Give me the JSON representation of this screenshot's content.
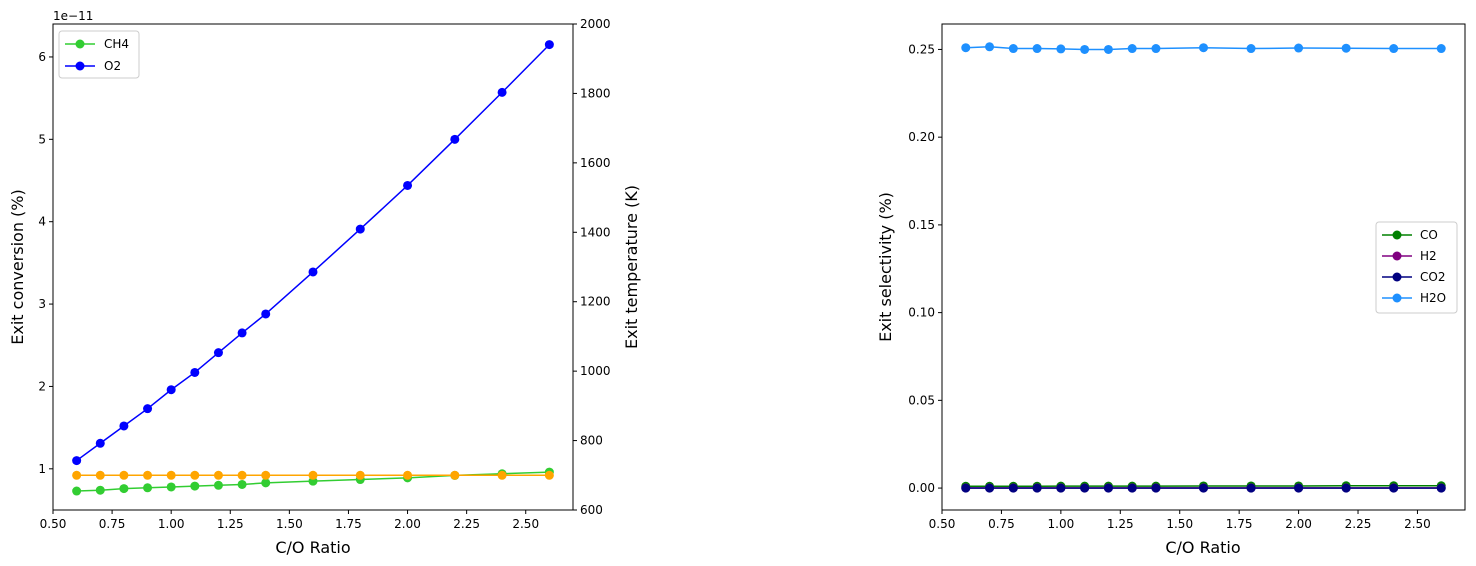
{
  "chart_data": [
    {
      "type": "line",
      "xlabel": "C/O Ratio",
      "ylabel": "Exit conversion (%)",
      "y2label": "Exit temperature (K)",
      "offset_text": "1e−11",
      "xlim": [
        0.5,
        2.7
      ],
      "ylim": [
        0.5,
        6.4
      ],
      "y2lim": [
        600,
        2000
      ],
      "xticks": [
        "0.50",
        "0.75",
        "1.00",
        "1.25",
        "1.50",
        "1.75",
        "2.00",
        "2.25",
        "2.50"
      ],
      "yticks": [
        "1",
        "2",
        "3",
        "4",
        "5",
        "6"
      ],
      "y2ticks": [
        "600",
        "800",
        "1000",
        "1200",
        "1400",
        "1600",
        "1800",
        "2000"
      ],
      "legend_position": "top-left",
      "x": [
        0.6,
        0.7,
        0.8,
        0.9,
        1.0,
        1.1,
        1.2,
        1.3,
        1.4,
        1.6,
        1.8,
        2.0,
        2.2,
        2.4,
        2.6
      ],
      "series": [
        {
          "name": "CH4",
          "color": "#32cd32",
          "axis": "left",
          "values": [
            0.73,
            0.74,
            0.76,
            0.77,
            0.78,
            0.79,
            0.8,
            0.81,
            0.83,
            0.85,
            0.87,
            0.89,
            0.92,
            0.94,
            0.96
          ]
        },
        {
          "name": "O2",
          "color": "#0000ff",
          "axis": "left",
          "values": [
            1.1,
            1.31,
            1.52,
            1.73,
            1.96,
            2.17,
            2.41,
            2.65,
            2.88,
            3.39,
            3.91,
            4.44,
            5.0,
            5.57,
            6.15
          ]
        },
        {
          "name": "",
          "color": "#ffa500",
          "axis": "right",
          "values": [
            700,
            700,
            700,
            700,
            700,
            700,
            700,
            700,
            700,
            700,
            700,
            700,
            700,
            700,
            700
          ]
        }
      ]
    },
    {
      "type": "line",
      "xlabel": "C/O Ratio",
      "ylabel": "Exit selectivity (%)",
      "xlim": [
        0.5,
        2.7
      ],
      "ylim": [
        -0.0125,
        0.2645
      ],
      "xticks": [
        "0.50",
        "0.75",
        "1.00",
        "1.25",
        "1.50",
        "1.75",
        "2.00",
        "2.25",
        "2.50"
      ],
      "yticks": [
        "0.00",
        "0.05",
        "0.10",
        "0.15",
        "0.20",
        "0.25"
      ],
      "legend_position": "center-right",
      "x": [
        0.6,
        0.7,
        0.8,
        0.9,
        1.0,
        1.1,
        1.2,
        1.3,
        1.4,
        1.6,
        1.8,
        2.0,
        2.2,
        2.4,
        2.6
      ],
      "series": [
        {
          "name": "CO",
          "color": "#008000",
          "values": [
            0.001,
            0.001,
            0.001,
            0.001,
            0.0011,
            0.0011,
            0.0011,
            0.0011,
            0.0011,
            0.0012,
            0.0012,
            0.0012,
            0.0013,
            0.0013,
            0.0013
          ]
        },
        {
          "name": "H2",
          "color": "#800080",
          "values": [
            0.0001,
            0.0001,
            0.0001,
            0.0001,
            0.0001,
            0.0001,
            0.0001,
            0.0001,
            0.0001,
            0.0001,
            0.0001,
            0.0001,
            0.0001,
            0.0001,
            0.0001
          ]
        },
        {
          "name": "CO2",
          "color": "#000080",
          "values": [
            0,
            0,
            0,
            0,
            0,
            0,
            0,
            0,
            0,
            0,
            0,
            0,
            0,
            0,
            0
          ]
        },
        {
          "name": "H2O",
          "color": "#1e90ff",
          "values": [
            0.251,
            0.2515,
            0.2505,
            0.2505,
            0.2503,
            0.25,
            0.25,
            0.2505,
            0.2505,
            0.251,
            0.2505,
            0.2508,
            0.2507,
            0.2505,
            0.2505
          ]
        }
      ]
    }
  ]
}
